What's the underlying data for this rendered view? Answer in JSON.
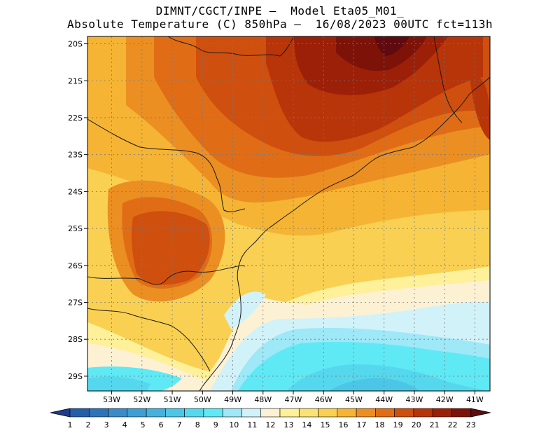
{
  "header": {
    "line1": "DIMNT/CGCT/INPE –  Model Eta05_M01_",
    "line2": "Absolute Temperature (C) 850hPa –  16/08/2023 00UTC fct=113h"
  },
  "map": {
    "lat_labels": [
      "20S",
      "21S",
      "22S",
      "23S",
      "24S",
      "25S",
      "26S",
      "27S",
      "28S",
      "29S"
    ],
    "lon_labels": [
      "53W",
      "52W",
      "51W",
      "50W",
      "49W",
      "48W",
      "47W",
      "46W",
      "45W",
      "44W",
      "43W",
      "42W",
      "41W"
    ],
    "lat_range": [
      -29.4,
      -19.8
    ],
    "lon_range": [
      -53.8,
      -40.5
    ]
  },
  "colorbar": {
    "labels": [
      "1",
      "2",
      "3",
      "4",
      "5",
      "6",
      "7",
      "8",
      "9",
      "10",
      "11",
      "12",
      "13",
      "14",
      "15",
      "16",
      "17",
      "18",
      "19",
      "20",
      "21",
      "22",
      "23"
    ],
    "colors": [
      "#1f3c8c",
      "#245ea8",
      "#2b74b8",
      "#3a8bc8",
      "#3e9fd4",
      "#45b2dd",
      "#4cc6e6",
      "#55d8ee",
      "#5fe9f5",
      "#9ee8f7",
      "#d2f2fa",
      "#fdf1d4",
      "#fff09a",
      "#fbe274",
      "#f9d052",
      "#f5b433",
      "#eb8f23",
      "#e06d16",
      "#cf4f0e",
      "#b83409",
      "#9c2008",
      "#7d1308",
      "#5e0a0f"
    ]
  }
}
